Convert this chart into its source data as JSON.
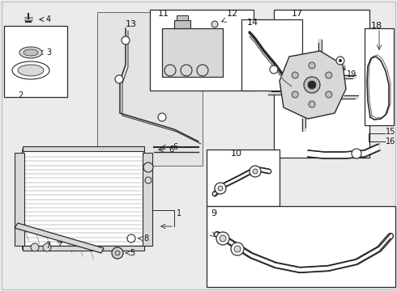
{
  "bg_color": "#e8e8e8",
  "line_color": "#2a2a2a",
  "white": "#ffffff",
  "light_gray": "#d8d8d8",
  "medium_gray": "#c0c0c0",
  "fig_w": 4.9,
  "fig_h": 3.6,
  "dpi": 100
}
